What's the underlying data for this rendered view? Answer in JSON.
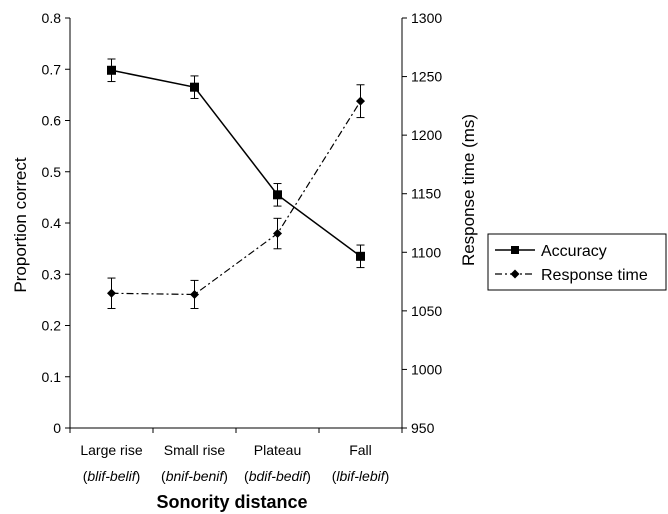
{
  "chart_data": {
    "type": "line",
    "categories": [
      "Large rise",
      "Small rise",
      "Plateau",
      "Fall"
    ],
    "category_examples": [
      "blif-belif",
      "bnif-benif",
      "bdif-bedif",
      "lbif-lebif"
    ],
    "xlabel": "Sonority distance",
    "ylabel_left": "Proportion correct",
    "ylabel_right": "Response time (ms)",
    "ylim_left": [
      0,
      0.8
    ],
    "yticks_left": [
      "0",
      "0.1",
      "0.2",
      "0.3",
      "0.4",
      "0.5",
      "0.6",
      "0.7",
      "0.8"
    ],
    "ylim_right": [
      950,
      1300
    ],
    "yticks_right": [
      "950",
      "1000",
      "1050",
      "1100",
      "1150",
      "1200",
      "1250",
      "1300"
    ],
    "grid": false,
    "legend_position": "right",
    "series": [
      {
        "name": "Accuracy",
        "axis": "left",
        "values": [
          0.698,
          0.665,
          0.455,
          0.335
        ],
        "error": [
          0.022,
          0.022,
          0.022,
          0.022
        ],
        "marker": "square",
        "line_style": "solid",
        "color": "#000000"
      },
      {
        "name": "Response time",
        "axis": "right",
        "values": [
          1065,
          1064,
          1116,
          1229
        ],
        "error": [
          13,
          12,
          13,
          14
        ],
        "marker": "diamond",
        "line_style": "dash-dot",
        "color": "#000000"
      }
    ]
  }
}
